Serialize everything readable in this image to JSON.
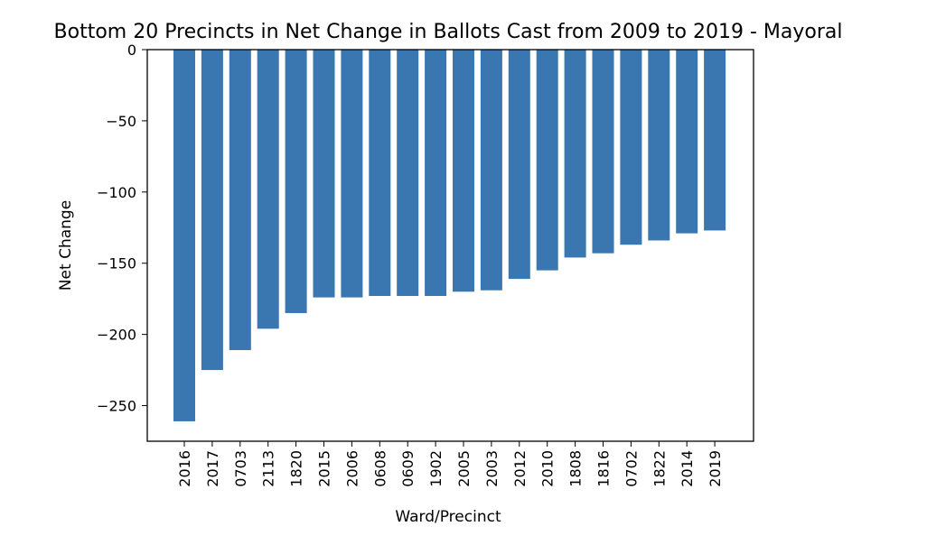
{
  "chart_data": {
    "type": "bar",
    "title": "Bottom 20 Precincts in Net Change in Ballots Cast from 2009 to 2019 - Mayoral",
    "xlabel": "Ward/Precinct",
    "ylabel": "Net Change",
    "categories": [
      "2016",
      "2017",
      "0703",
      "2113",
      "1820",
      "2015",
      "2006",
      "0608",
      "0609",
      "1902",
      "2005",
      "2003",
      "2012",
      "2010",
      "1808",
      "1816",
      "0702",
      "1822",
      "2014",
      "2019"
    ],
    "values": [
      -261,
      -225,
      -211,
      -196,
      -185,
      -174,
      -174,
      -173,
      -173,
      -173,
      -170,
      -169,
      -161,
      -155,
      -146,
      -143,
      -137,
      -134,
      -129,
      -127
    ],
    "ylim": [
      -275,
      0
    ],
    "yticks": [
      0,
      -50,
      -100,
      -150,
      -200,
      -250
    ],
    "ytick_labels": [
      "0",
      "−50",
      "−100",
      "−150",
      "−200",
      "−250"
    ],
    "bar_color": "#3a76af",
    "grid": false,
    "legend": "none"
  }
}
